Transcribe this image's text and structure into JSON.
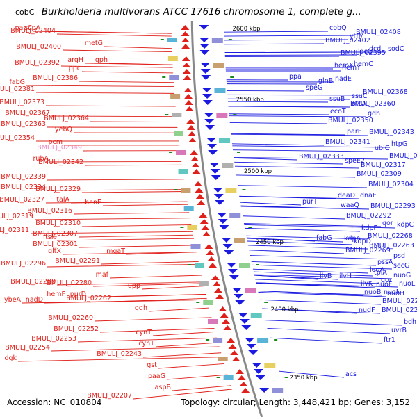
{
  "header": {
    "locus_top": "cobC",
    "title": "Burkholderia multivorans ATCC 17616 chromosome 1, complete g..."
  },
  "footer": {
    "accession": "Accession: NC_010804",
    "summary": "Topology: circular; Length: 3,448,421 bp; Genes: 3,152"
  },
  "colors": {
    "minus_strand": "#e0201a",
    "plus_strand": "#1a1ae0",
    "highlight": "#f08cc8",
    "tick": "#1a8a1a"
  },
  "ruler": [
    "2600 kbp",
    "2550 kbp",
    "2500 kbp",
    "2450 kbp",
    "2400 kbp",
    "2350 kbp"
  ],
  "left_genes": [
    "panC",
    "scpA",
    "BMULJ_02404",
    "BMULJ_02400",
    "metG",
    "argH",
    "gph",
    "BMULJ_02392",
    "ppc",
    "BMULJ_02386",
    "fabG",
    "BMULJ_02381",
    "BMULJ_02373",
    "BMULJ_02367",
    "BMULJ_02364",
    "BMULJ_02363",
    "yebQ",
    "BMULJ_02354",
    "pcm",
    "BMULJ_02349",
    "rubA",
    "BMULJ_02342",
    "BMULJ_02339",
    "BMULJ_02334",
    "BMULJ_02329",
    "BMULJ_02327",
    "talA",
    "benE",
    "BMULJ_02319",
    "BMULJ_02316",
    "BMULJ_02311",
    "BMULJ_02310",
    "ftsK",
    "BMULJ_02307",
    "BMULJ_02301",
    "gltX",
    "mgaT",
    "BMULJ_02296",
    "BMULJ_02291",
    "maf",
    "BMULJ_02288",
    "BMULJ_02280",
    "ybeA",
    "nadD",
    "hemF",
    "purD",
    "upp",
    "BMULJ_02262",
    "gdh",
    "BMULJ_02260",
    "BMULJ_02252",
    "BMULJ_02253",
    "cynT",
    "BMULJ_02254",
    "cynT",
    "dgk",
    "BMULJ_02243",
    "gst",
    "paaG",
    "aspB",
    "BMULJ_02207"
  ],
  "right_genes": [
    "cobQ",
    "BMULJ_02408",
    "ytfM",
    "BMULJ_02402",
    "dcd",
    "sodC",
    "ldcC",
    "BMULJ_02395",
    "hemC",
    "hemX",
    "hemY",
    "ppa",
    "nadE",
    "glnB",
    "speG",
    "BMULJ_02368",
    "ssuC",
    "ssuB",
    "otsA",
    "BMULJ_02360",
    "ecoT",
    "gdh",
    "BMULJ_02350",
    "parE",
    "BMULJ_02343",
    "BMULJ_02341",
    "htpG",
    "ubiC",
    "BMULJ_02324",
    "BMULJ_02333",
    "speE2",
    "BMULJ_02317",
    "BMULJ_02309",
    "BMULJ_02304",
    "deaD",
    "dnaE",
    "purT",
    "waaQ",
    "BMULJ_02293",
    "BMULJ_02292",
    "qor",
    "kdpC",
    "kdpF",
    "BMULJ_02268",
    "fabG",
    "kdpA",
    "kdpD",
    "BMULJ_02263",
    "BMULJ_02269",
    "psd",
    "pssA",
    "secG",
    "tpiA",
    "nuoG",
    "ilvB",
    "ilvH",
    "leuA",
    "nuoL",
    "ilvK",
    "qor",
    "nuoF",
    "nuoN",
    "nuoB",
    "nuoH",
    "BMULJ_02219",
    "nudF",
    "BMULJ_02212",
    "bdh",
    "uvrB",
    "ftr1",
    "acs"
  ]
}
